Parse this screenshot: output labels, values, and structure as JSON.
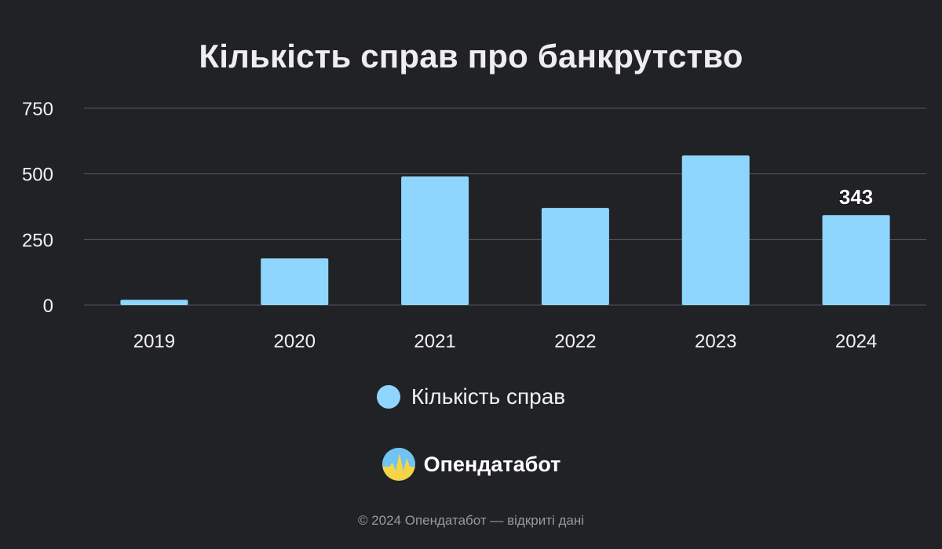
{
  "chart_data": {
    "type": "bar",
    "title": "Кількість справ про банкрутство",
    "categories": [
      "2019",
      "2020",
      "2021",
      "2022",
      "2023",
      "2024"
    ],
    "series": [
      {
        "name": "Кількість справ",
        "values": [
          20,
          178,
          490,
          370,
          570,
          343
        ]
      }
    ],
    "ylim": [
      0,
      750
    ],
    "yticks": [
      "0",
      "250",
      "500",
      "750"
    ],
    "grid": true,
    "legend_position": "bottom",
    "data_labels": {
      "2024": "343"
    },
    "colors": {
      "bar": "#8fd6fe",
      "background": "#212226",
      "grid": "#55575c"
    }
  },
  "brand": {
    "name": "Опендатабот",
    "logo_icon": "opendatabot-logo-icon"
  },
  "footer": {
    "text": "© 2024 Опендатабот — відкриті дані"
  }
}
